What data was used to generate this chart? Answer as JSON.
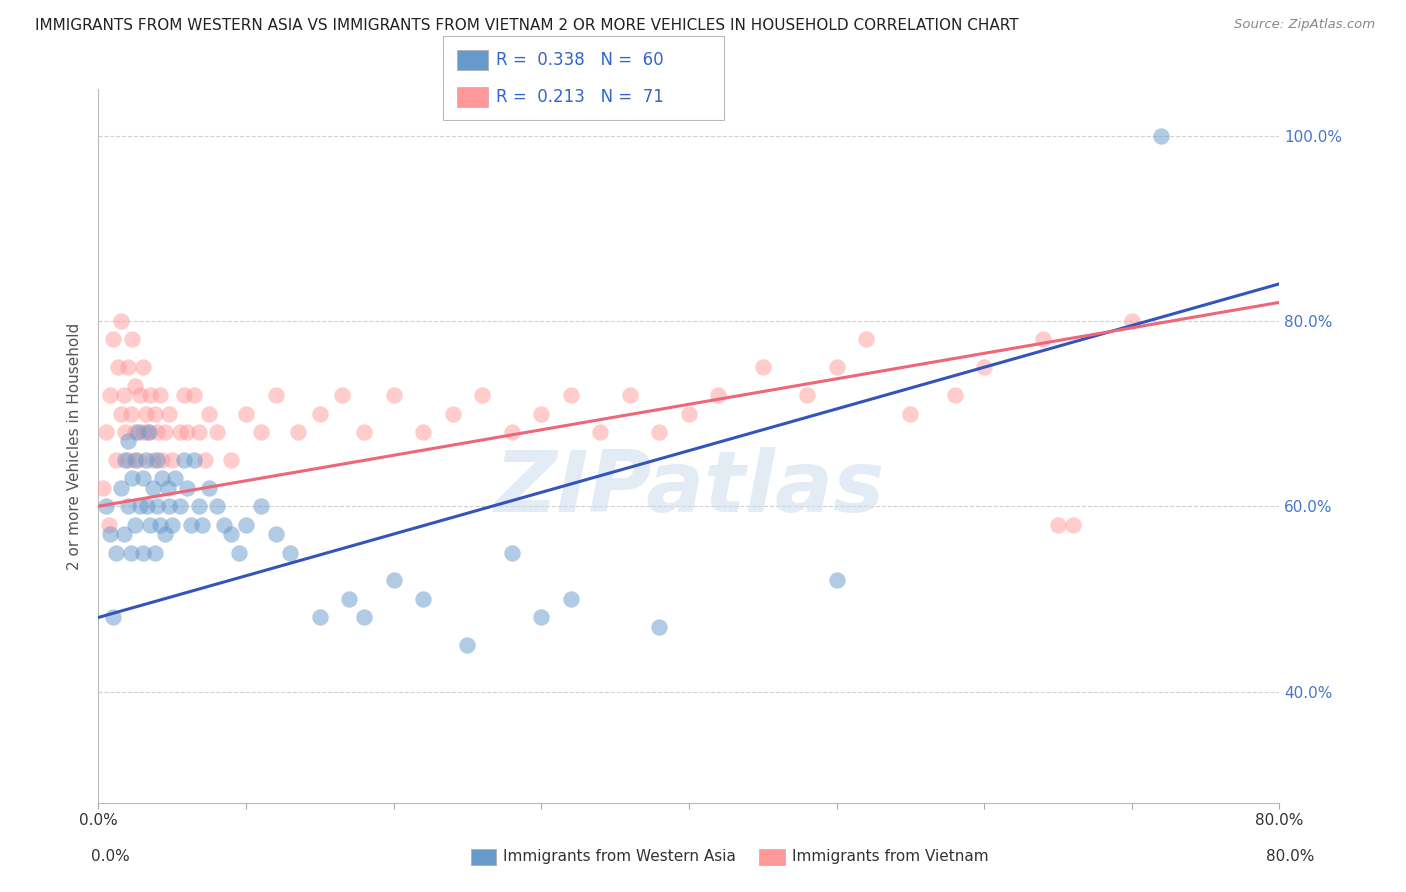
{
  "title": "IMMIGRANTS FROM WESTERN ASIA VS IMMIGRANTS FROM VIETNAM 2 OR MORE VEHICLES IN HOUSEHOLD CORRELATION CHART",
  "source": "Source: ZipAtlas.com",
  "ylabel_label": "2 or more Vehicles in Household",
  "legend_blue_r": "R = 0.338",
  "legend_blue_n": "N = 60",
  "legend_pink_r": "R = 0.213",
  "legend_pink_n": "N = 71",
  "xlim": [
    0.0,
    0.8
  ],
  "ylim": [
    0.28,
    1.05
  ],
  "blue_scatter_x": [
    0.005,
    0.008,
    0.01,
    0.012,
    0.015,
    0.017,
    0.018,
    0.02,
    0.02,
    0.022,
    0.023,
    0.025,
    0.025,
    0.027,
    0.028,
    0.03,
    0.03,
    0.032,
    0.033,
    0.034,
    0.035,
    0.037,
    0.038,
    0.04,
    0.04,
    0.042,
    0.043,
    0.045,
    0.047,
    0.048,
    0.05,
    0.052,
    0.055,
    0.058,
    0.06,
    0.063,
    0.065,
    0.068,
    0.07,
    0.075,
    0.08,
    0.085,
    0.09,
    0.095,
    0.1,
    0.11,
    0.12,
    0.13,
    0.15,
    0.17,
    0.18,
    0.2,
    0.22,
    0.25,
    0.28,
    0.3,
    0.32,
    0.38,
    0.5,
    0.72
  ],
  "blue_scatter_y": [
    0.6,
    0.57,
    0.48,
    0.55,
    0.62,
    0.57,
    0.65,
    0.6,
    0.67,
    0.55,
    0.63,
    0.58,
    0.65,
    0.68,
    0.6,
    0.63,
    0.55,
    0.65,
    0.6,
    0.68,
    0.58,
    0.62,
    0.55,
    0.6,
    0.65,
    0.58,
    0.63,
    0.57,
    0.62,
    0.6,
    0.58,
    0.63,
    0.6,
    0.65,
    0.62,
    0.58,
    0.65,
    0.6,
    0.58,
    0.62,
    0.6,
    0.58,
    0.57,
    0.55,
    0.58,
    0.6,
    0.57,
    0.55,
    0.48,
    0.5,
    0.48,
    0.52,
    0.5,
    0.45,
    0.55,
    0.48,
    0.5,
    0.47,
    0.52,
    1.0
  ],
  "pink_scatter_x": [
    0.003,
    0.005,
    0.007,
    0.008,
    0.01,
    0.012,
    0.013,
    0.015,
    0.015,
    0.017,
    0.018,
    0.02,
    0.02,
    0.022,
    0.023,
    0.025,
    0.025,
    0.027,
    0.028,
    0.03,
    0.03,
    0.032,
    0.033,
    0.035,
    0.037,
    0.038,
    0.04,
    0.042,
    0.043,
    0.045,
    0.048,
    0.05,
    0.055,
    0.058,
    0.06,
    0.065,
    0.068,
    0.072,
    0.075,
    0.08,
    0.09,
    0.1,
    0.11,
    0.12,
    0.135,
    0.15,
    0.165,
    0.18,
    0.2,
    0.22,
    0.24,
    0.26,
    0.28,
    0.3,
    0.32,
    0.34,
    0.36,
    0.38,
    0.4,
    0.42,
    0.45,
    0.48,
    0.5,
    0.52,
    0.55,
    0.58,
    0.6,
    0.64,
    0.66,
    0.7,
    0.65
  ],
  "pink_scatter_y": [
    0.62,
    0.68,
    0.58,
    0.72,
    0.78,
    0.65,
    0.75,
    0.7,
    0.8,
    0.72,
    0.68,
    0.65,
    0.75,
    0.7,
    0.78,
    0.68,
    0.73,
    0.65,
    0.72,
    0.68,
    0.75,
    0.7,
    0.68,
    0.72,
    0.65,
    0.7,
    0.68,
    0.72,
    0.65,
    0.68,
    0.7,
    0.65,
    0.68,
    0.72,
    0.68,
    0.72,
    0.68,
    0.65,
    0.7,
    0.68,
    0.65,
    0.7,
    0.68,
    0.72,
    0.68,
    0.7,
    0.72,
    0.68,
    0.72,
    0.68,
    0.7,
    0.72,
    0.68,
    0.7,
    0.72,
    0.68,
    0.72,
    0.68,
    0.7,
    0.72,
    0.75,
    0.72,
    0.75,
    0.78,
    0.7,
    0.72,
    0.75,
    0.78,
    0.58,
    0.8,
    0.58
  ],
  "blue_line_x": [
    0.0,
    0.8
  ],
  "blue_line_y": [
    0.48,
    0.84
  ],
  "pink_line_x": [
    0.0,
    0.8
  ],
  "pink_line_y": [
    0.6,
    0.82
  ],
  "blue_color": "#6699CC",
  "pink_color": "#FF9999",
  "blue_line_color": "#3355BB",
  "pink_line_color": "#EE6677",
  "watermark": "ZIPatlas",
  "grid_color": "#CCCCCC",
  "background_color": "#FFFFFF",
  "bottom_legend_blue_label": "Immigrants from Western Asia",
  "bottom_legend_pink_label": "Immigrants from Vietnam",
  "yticks": [
    0.4,
    0.6,
    0.8,
    1.0
  ],
  "right_ytick_labels": [
    "40.0%",
    "60.0%",
    "80.0%",
    "100.0%"
  ]
}
